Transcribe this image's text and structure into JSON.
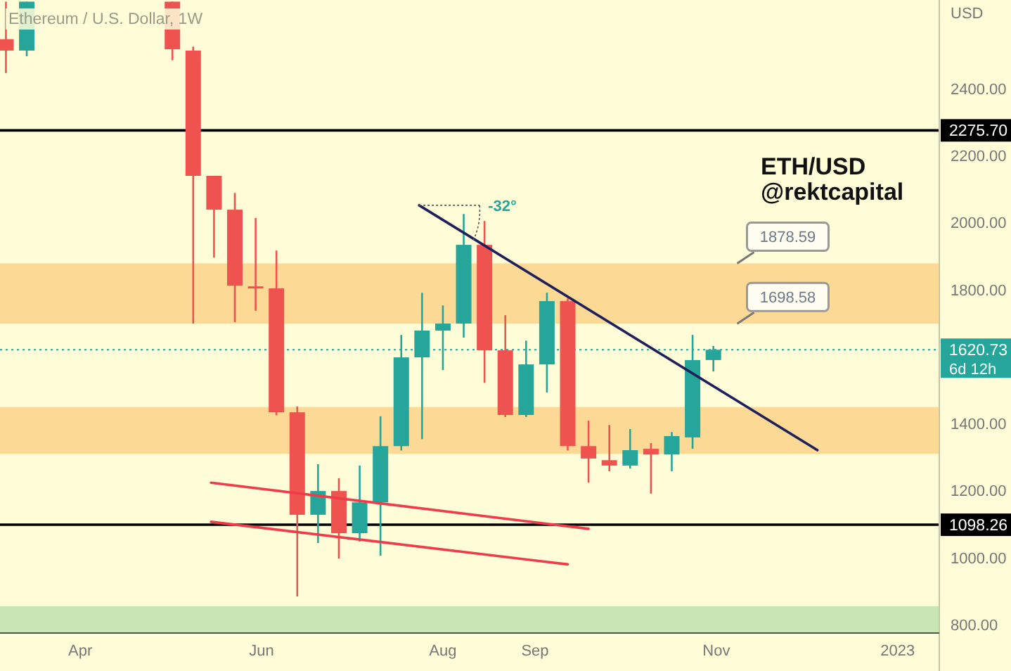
{
  "chart_data": {
    "type": "candlestick",
    "title": "Ethereum / U.S. Dollar, 1W",
    "ylabel": "USD",
    "x": [
      "2022-03-07",
      "2022-03-14",
      "2022-05-02",
      "2022-05-09",
      "2022-05-16",
      "2022-05-23",
      "2022-05-30",
      "2022-06-06",
      "2022-06-13",
      "2022-06-20",
      "2022-06-27",
      "2022-07-04",
      "2022-07-11",
      "2022-07-18",
      "2022-07-25",
      "2022-08-01",
      "2022-08-08",
      "2022-08-15",
      "2022-08-22",
      "2022-08-29",
      "2022-09-05",
      "2022-09-12",
      "2022-09-19",
      "2022-09-26",
      "2022-10-03",
      "2022-10-10",
      "2022-10-17",
      "2022-10-24",
      "2022-10-31"
    ],
    "ohlc": [
      [
        2548,
        2660,
        2447,
        2514
      ],
      [
        2514,
        2660,
        2497,
        2660
      ],
      [
        2660,
        2660,
        2485,
        2518
      ],
      [
        2514,
        2526,
        1699,
        2140
      ],
      [
        2140,
        2140,
        1896,
        2039
      ],
      [
        2039,
        2089,
        1703,
        1812
      ],
      [
        1810,
        2014,
        1737,
        1806
      ],
      [
        1804,
        1917,
        1425,
        1434
      ],
      [
        1434,
        1451,
        884,
        1128
      ],
      [
        1128,
        1279,
        1044,
        1199
      ],
      [
        1199,
        1237,
        997,
        1073
      ],
      [
        1073,
        1275,
        1048,
        1165
      ],
      [
        1165,
        1422,
        1006,
        1333
      ],
      [
        1333,
        1665,
        1320,
        1598
      ],
      [
        1598,
        1791,
        1354,
        1678
      ],
      [
        1678,
        1753,
        1560,
        1699
      ],
      [
        1699,
        2026,
        1657,
        1934
      ],
      [
        1934,
        2005,
        1522,
        1619
      ],
      [
        1619,
        1724,
        1420,
        1426
      ],
      [
        1426,
        1648,
        1420,
        1577
      ],
      [
        1577,
        1791,
        1493,
        1766
      ],
      [
        1766,
        1774,
        1320,
        1333
      ],
      [
        1333,
        1409,
        1224,
        1296
      ],
      [
        1291,
        1396,
        1258,
        1275
      ],
      [
        1275,
        1384,
        1266,
        1321
      ],
      [
        1325,
        1342,
        1191,
        1308
      ],
      [
        1308,
        1375,
        1258,
        1363
      ],
      [
        1359,
        1665,
        1325,
        1590
      ],
      [
        1590,
        1632,
        1556,
        1620.73
      ]
    ],
    "colors": [
      "#ef5350",
      "#26a69a",
      "#ef5350",
      "#ef5350",
      "#ef5350",
      "#ef5350",
      "#ef5350",
      "#ef5350",
      "#ef5350",
      "#26a69a",
      "#ef5350",
      "#26a69a",
      "#26a69a",
      "#26a69a",
      "#26a69a",
      "#26a69a",
      "#26a69a",
      "#ef5350",
      "#ef5350",
      "#26a69a",
      "#26a69a",
      "#ef5350",
      "#ef5350",
      "#ef5350",
      "#26a69a",
      "#ef5350",
      "#26a69a",
      "#26a69a",
      "#26a69a"
    ],
    "series": [
      {
        "type": "line",
        "color": "#1f1f5c",
        "x": [
          "2022-07-24",
          "2022-12-05"
        ],
        "values": [
          2052,
          1321
        ]
      },
      {
        "type": "line",
        "color": "#ef3b4a",
        "x": [
          "2022-05-15",
          "2022-09-19"
        ],
        "values": [
          1224,
          1086
        ]
      },
      {
        "type": "line",
        "color": "#ef3b4a",
        "x": [
          "2022-05-15",
          "2022-09-12"
        ],
        "values": [
          1107,
          980
        ]
      }
    ],
    "xlim": [
      "2022-03-05",
      "2023-01-15"
    ],
    "xticks": [
      {
        "value": "2022-04-01",
        "label": "Apr"
      },
      {
        "value": "2022-06-01",
        "label": "Jun"
      },
      {
        "value": "2022-08-01",
        "label": "Aug"
      },
      {
        "value": "2022-09-01",
        "label": "Sep"
      },
      {
        "value": "2022-11-01",
        "label": "Nov"
      },
      {
        "value": "2023-01-01",
        "label": "2023"
      }
    ],
    "ylim": [
      775,
      2665
    ],
    "yticks": [
      {
        "value": 800,
        "label": "800.00"
      },
      {
        "value": 1000,
        "label": "1000.00"
      },
      {
        "value": 1200,
        "label": "1200.00"
      },
      {
        "value": 1400,
        "label": "1400.00"
      },
      {
        "value": 1800,
        "label": "1800.00"
      },
      {
        "value": 2000,
        "label": "2000.00"
      },
      {
        "value": 2200,
        "label": "2200.00"
      },
      {
        "value": 2400,
        "label": "2400.00"
      }
    ],
    "ref_lines": [
      {
        "axis": "y",
        "value": 2275.7,
        "label": "2275.70",
        "color": "#000000"
      },
      {
        "axis": "y",
        "value": 1098.26,
        "label": "1098.26",
        "color": "#000000"
      },
      {
        "axis": "y",
        "value": 1620.73,
        "label": "1620.73",
        "color": "#26a69a",
        "line_style": "dotted"
      }
    ],
    "bands": [
      {
        "axis": "y",
        "from": 1698.58,
        "to": 1878.59,
        "color": "#fcd994"
      },
      {
        "axis": "y",
        "from": 1310,
        "to": 1450,
        "color": "#fcd994"
      },
      {
        "axis": "y",
        "from": 775,
        "to": 855,
        "color": "#c8e6b4"
      }
    ],
    "annotations": [
      "ETH/USD",
      "@rektcapital",
      {
        "text": "-32°",
        "x": "2022-07-24",
        "y": 2052
      },
      {
        "text": "1878.59",
        "x": "2022-11-08",
        "y": 1878.59
      },
      {
        "text": "1698.58",
        "x": "2022-11-08",
        "y": 1698.58
      },
      "6d 12h"
    ],
    "grid": false
  }
}
